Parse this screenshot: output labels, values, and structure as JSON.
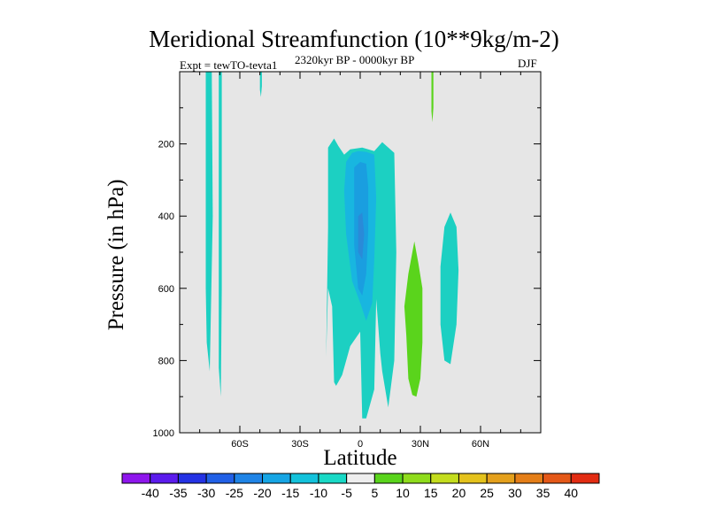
{
  "chart_data": {
    "type": "heatmap",
    "title": "Meridional Streamfunction (10**9kg/m-2)",
    "subtitle_left": "Expt = tewTO-tevta1",
    "subtitle_center": "2320kyr BP - 0000kyr BP",
    "subtitle_right": "DJF",
    "xlabel": "Latitude",
    "ylabel": "Pressure (in hPa)",
    "xlim": [
      -90,
      90
    ],
    "ylim": [
      1000,
      0
    ],
    "x_ticks": [
      {
        "value": -60,
        "label": "60S"
      },
      {
        "value": -30,
        "label": "30S"
      },
      {
        "value": 0,
        "label": "0"
      },
      {
        "value": 30,
        "label": "30N"
      },
      {
        "value": 60,
        "label": "60N"
      }
    ],
    "y_ticks": [
      {
        "value": 200,
        "label": "200"
      },
      {
        "value": 400,
        "label": "400"
      },
      {
        "value": 600,
        "label": "600"
      },
      {
        "value": 800,
        "label": "800"
      },
      {
        "value": 1000,
        "label": "1000"
      }
    ],
    "background_color": "#e6e6e6",
    "regions": [
      {
        "name": "sh-polar-column-a",
        "level": -10,
        "polygon": [
          [
            -77,
            0
          ],
          [
            -74,
            0
          ],
          [
            -73.5,
            400
          ],
          [
            -75,
            830
          ],
          [
            -76.5,
            750
          ],
          [
            -77,
            600
          ]
        ]
      },
      {
        "name": "sh-polar-column-b",
        "level": -10,
        "polygon": [
          [
            -70.5,
            0
          ],
          [
            -69,
            0
          ],
          [
            -69,
            600
          ],
          [
            -69.5,
            900
          ],
          [
            -70.5,
            820
          ],
          [
            -70.5,
            500
          ]
        ]
      },
      {
        "name": "sh-upper-filament",
        "level": -10,
        "polygon": [
          [
            -50,
            0
          ],
          [
            -49,
            0
          ],
          [
            -49,
            40
          ],
          [
            -49.5,
            70
          ],
          [
            -50,
            50
          ]
        ]
      },
      {
        "name": "tropical-outer",
        "level": -10,
        "polygon": [
          [
            -16,
            210
          ],
          [
            -13,
            185
          ],
          [
            -11,
            205
          ],
          [
            -8,
            230
          ],
          [
            -5,
            215
          ],
          [
            1,
            210
          ],
          [
            7,
            220
          ],
          [
            11,
            195
          ],
          [
            17,
            225
          ],
          [
            18,
            500
          ],
          [
            17,
            800
          ],
          [
            14,
            930
          ],
          [
            11,
            830
          ],
          [
            10,
            780
          ],
          [
            8,
            630
          ],
          [
            7,
            880
          ],
          [
            3,
            960
          ],
          [
            1,
            960
          ],
          [
            0,
            720
          ],
          [
            -5,
            760
          ],
          [
            -9,
            840
          ],
          [
            -12,
            870
          ],
          [
            -13,
            860
          ],
          [
            -14,
            650
          ],
          [
            -16,
            600
          ],
          [
            -17,
            790
          ],
          [
            -16,
            430
          ]
        ]
      },
      {
        "name": "tropical-mid",
        "level": -15,
        "polygon": [
          [
            -7,
            250
          ],
          [
            -4,
            225
          ],
          [
            -1,
            220
          ],
          [
            3,
            222
          ],
          [
            7,
            230
          ],
          [
            8,
            350
          ],
          [
            7,
            520
          ],
          [
            6,
            640
          ],
          [
            3,
            690
          ],
          [
            0,
            640
          ],
          [
            -4,
            580
          ],
          [
            -7,
            450
          ],
          [
            -8,
            330
          ]
        ]
      },
      {
        "name": "tropical-core",
        "level": -20,
        "polygon": [
          [
            -3,
            265
          ],
          [
            0,
            250
          ],
          [
            3,
            255
          ],
          [
            4,
            320
          ],
          [
            4,
            440
          ],
          [
            3,
            560
          ],
          [
            1,
            620
          ],
          [
            -1,
            600
          ],
          [
            -3,
            480
          ],
          [
            -3,
            350
          ]
        ]
      },
      {
        "name": "tropical-innermost",
        "level": -25,
        "polygon": [
          [
            -1,
            400
          ],
          [
            1,
            390
          ],
          [
            2,
            450
          ],
          [
            1,
            520
          ],
          [
            -1,
            500
          ]
        ]
      },
      {
        "name": "nh-positive-cell",
        "level": 10,
        "polygon": [
          [
            27,
            470
          ],
          [
            29,
            530
          ],
          [
            31,
            600
          ],
          [
            31,
            750
          ],
          [
            30,
            850
          ],
          [
            28,
            900
          ],
          [
            26,
            895
          ],
          [
            24,
            850
          ],
          [
            23,
            730
          ],
          [
            22,
            650
          ],
          [
            24,
            560
          ]
        ]
      },
      {
        "name": "nh-upper-filament",
        "level": 10,
        "polygon": [
          [
            35.5,
            0
          ],
          [
            36.5,
            0
          ],
          [
            36.5,
            100
          ],
          [
            36,
            140
          ],
          [
            35.5,
            110
          ]
        ]
      },
      {
        "name": "nh-midlat-cell",
        "level": -10,
        "polygon": [
          [
            45,
            390
          ],
          [
            48,
            430
          ],
          [
            49,
            550
          ],
          [
            48,
            700
          ],
          [
            45,
            810
          ],
          [
            42,
            800
          ],
          [
            40,
            700
          ],
          [
            40,
            540
          ],
          [
            42,
            430
          ]
        ]
      }
    ],
    "colorbar": {
      "labels": [
        "-40",
        "-35",
        "-30",
        "-25",
        "-20",
        "-15",
        "-10",
        "-5",
        "5",
        "10",
        "15",
        "20",
        "25",
        "30",
        "35",
        "40"
      ],
      "colors": [
        "#8e16ec",
        "#5b1bec",
        "#2432e4",
        "#2160e6",
        "#1f84e6",
        "#16a5e4",
        "#13c2db",
        "#19d9c6",
        "#eeeeee",
        "#5ad41c",
        "#8fdc1c",
        "#c4dd1e",
        "#e4c21c",
        "#e4a01c",
        "#e47e18",
        "#e45818",
        "#e22c12"
      ]
    },
    "level_colors": {
      "-25": "#2a8ad8",
      "-20": "#1a9ee0",
      "-15": "#18b6e0",
      "-10": "#1cd0c2",
      "10": "#5ad41c"
    }
  }
}
